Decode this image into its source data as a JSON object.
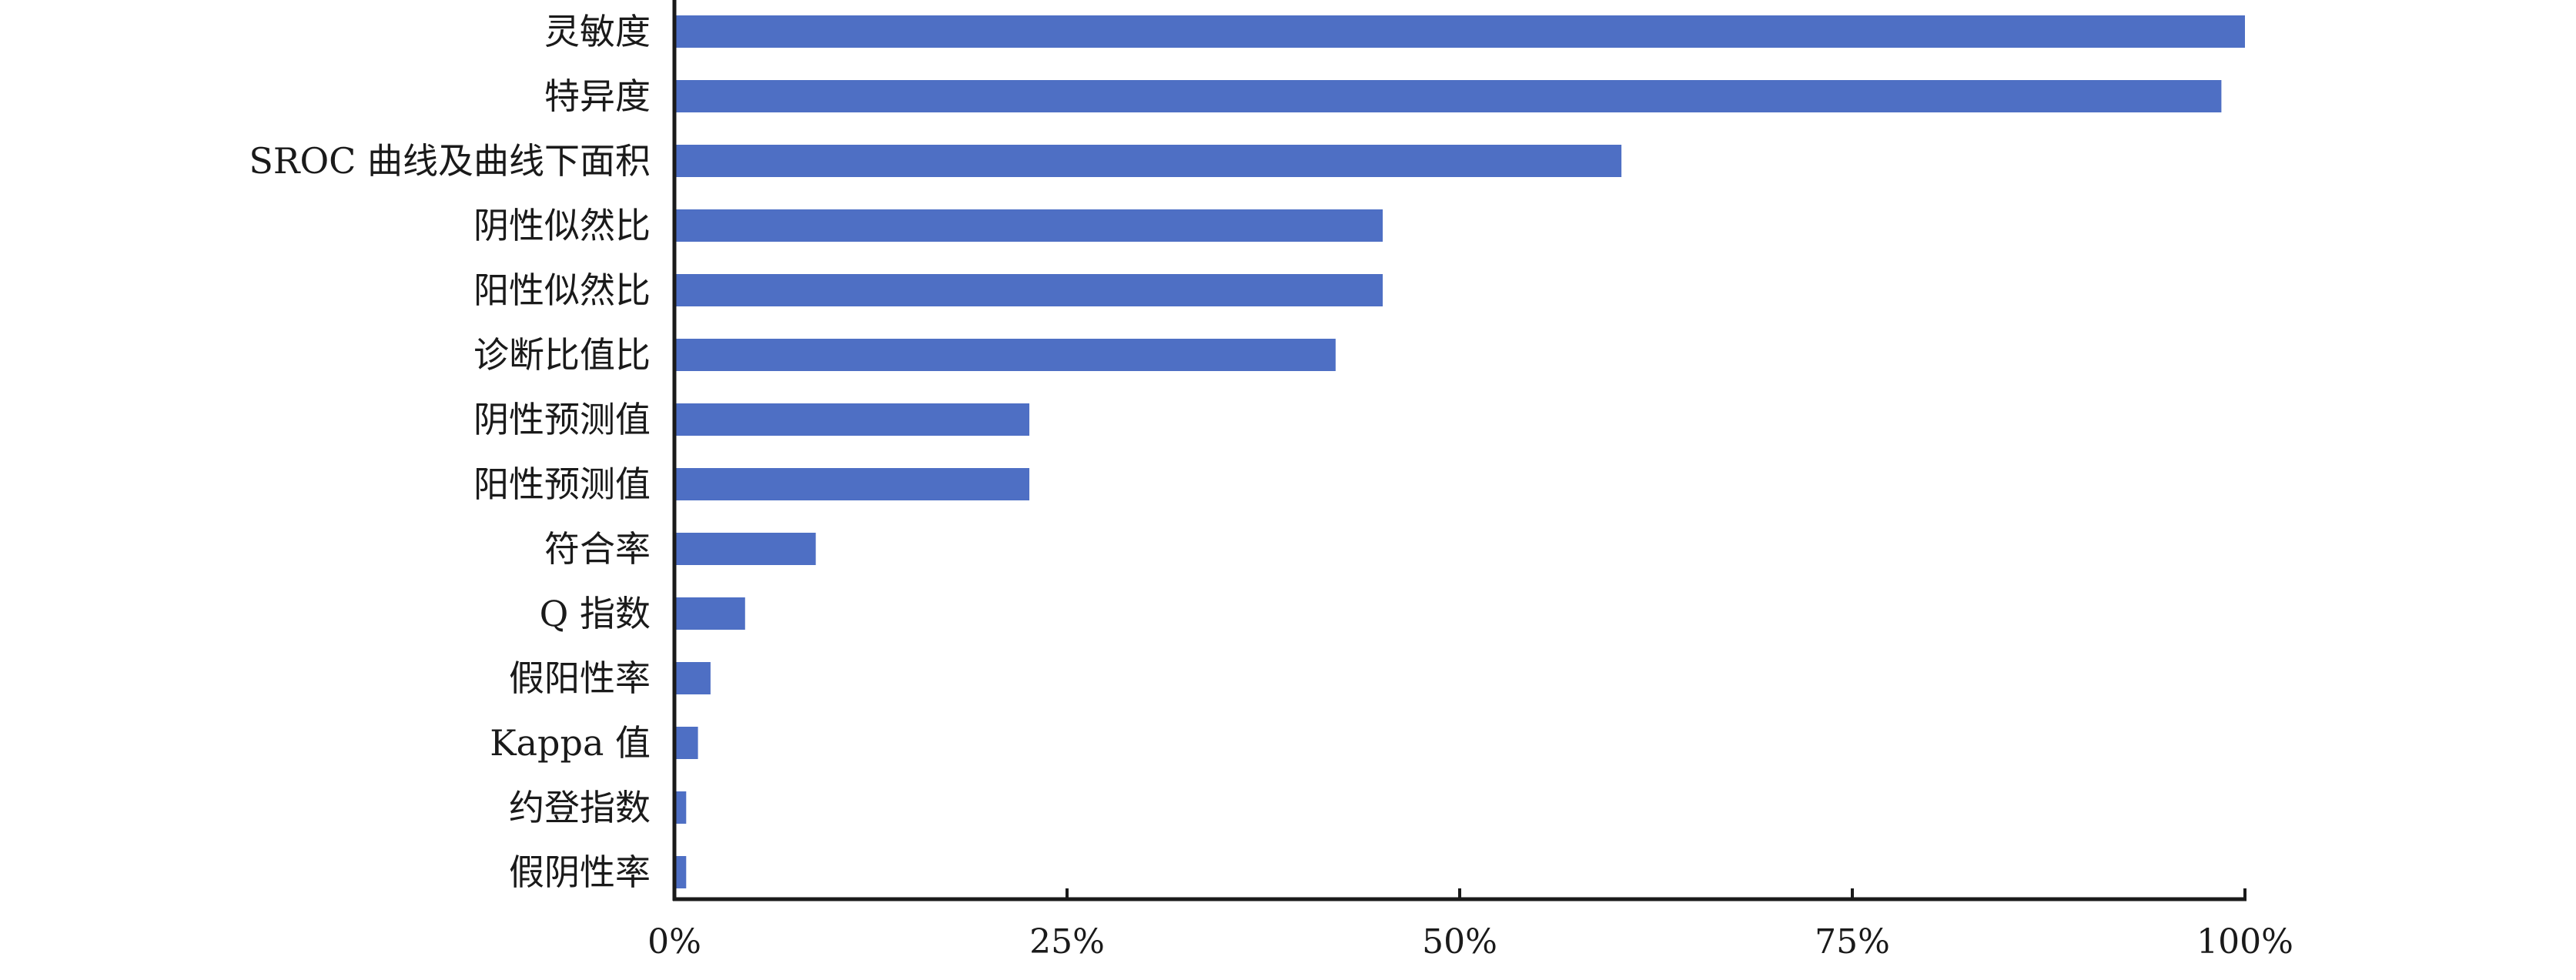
{
  "chart_data": {
    "type": "bar",
    "orientation": "horizontal",
    "title": "",
    "xlabel": "",
    "ylabel": "",
    "categories": [
      "灵敏度",
      "特异度",
      "SROC 曲线及曲线下面积",
      "阴性似然比",
      "阳性似然比",
      "诊断比值比",
      "阴性预测值",
      "阳性预测值",
      "符合率",
      "Q 指数",
      "假阳性率",
      "Kappa 值",
      "约登指数",
      "假阴性率"
    ],
    "values": [
      100,
      98.5,
      60.3,
      45.1,
      45.1,
      42.1,
      22.6,
      22.6,
      9.0,
      4.5,
      2.3,
      1.5,
      0.75,
      0.75
    ],
    "value_unit": "%",
    "xlim": [
      0,
      100
    ],
    "x_ticks": [
      0,
      25,
      50,
      75,
      100
    ],
    "x_tick_labels": [
      "0%",
      "25%",
      "50%",
      "75%",
      "100%"
    ],
    "bar_color": "#4E6FC4",
    "axis_color": "#1a1a1a",
    "grid": false,
    "legend": "none"
  }
}
